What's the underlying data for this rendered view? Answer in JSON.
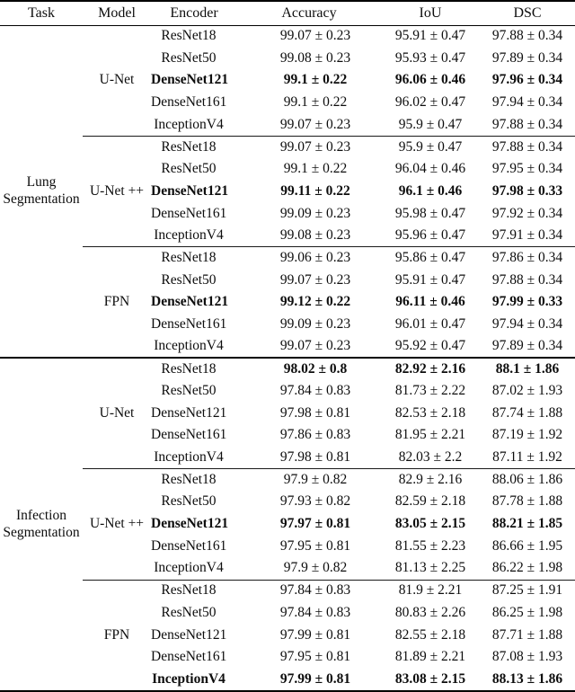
{
  "table": {
    "columns": [
      "Task",
      "Model",
      "Encoder",
      "Accuracy",
      "IoU",
      "DSC"
    ],
    "tasks": [
      {
        "name": "Lung Segmentation",
        "models": [
          {
            "name": "U-Net",
            "rows": [
              {
                "encoder": "ResNet18",
                "accuracy": "99.07 ± 0.23",
                "iou": "95.91 ± 0.47",
                "dsc": "97.88 ± 0.34",
                "bold_encoder": false,
                "bold_values": false
              },
              {
                "encoder": "ResNet50",
                "accuracy": "99.08 ± 0.23",
                "iou": "95.93 ± 0.47",
                "dsc": "97.89 ± 0.34",
                "bold_encoder": false,
                "bold_values": false
              },
              {
                "encoder": "DenseNet121",
                "accuracy": "99.1 ± 0.22",
                "iou": "96.06 ± 0.46",
                "dsc": "97.96 ± 0.34",
                "bold_encoder": true,
                "bold_values": true
              },
              {
                "encoder": "DenseNet161",
                "accuracy": "99.1 ± 0.22",
                "iou": "96.02 ± 0.47",
                "dsc": "97.94 ± 0.34",
                "bold_encoder": false,
                "bold_values": false
              },
              {
                "encoder": "InceptionV4",
                "accuracy": "99.07 ± 0.23",
                "iou": "95.9 ± 0.47",
                "dsc": "97.88 ± 0.34",
                "bold_encoder": false,
                "bold_values": false
              }
            ]
          },
          {
            "name": "U-Net ++",
            "rows": [
              {
                "encoder": "ResNet18",
                "accuracy": "99.07 ± 0.23",
                "iou": "95.9 ± 0.47",
                "dsc": "97.88 ± 0.34",
                "bold_encoder": false,
                "bold_values": false
              },
              {
                "encoder": "ResNet50",
                "accuracy": "99.1 ± 0.22",
                "iou": "96.04 ± 0.46",
                "dsc": "97.95 ± 0.34",
                "bold_encoder": false,
                "bold_values": false
              },
              {
                "encoder": "DenseNet121",
                "accuracy": "99.11 ± 0.22",
                "iou": "96.1 ± 0.46",
                "dsc": "97.98 ± 0.33",
                "bold_encoder": true,
                "bold_values": true
              },
              {
                "encoder": "DenseNet161",
                "accuracy": "99.09 ± 0.23",
                "iou": "95.98 ± 0.47",
                "dsc": "97.92 ± 0.34",
                "bold_encoder": false,
                "bold_values": false
              },
              {
                "encoder": "InceptionV4",
                "accuracy": "99.08 ± 0.23",
                "iou": "95.96 ± 0.47",
                "dsc": "97.91 ± 0.34",
                "bold_encoder": false,
                "bold_values": false
              }
            ]
          },
          {
            "name": "FPN",
            "rows": [
              {
                "encoder": "ResNet18",
                "accuracy": "99.06 ± 0.23",
                "iou": "95.86 ± 0.47",
                "dsc": "97.86 ± 0.34",
                "bold_encoder": false,
                "bold_values": false
              },
              {
                "encoder": "ResNet50",
                "accuracy": "99.07 ± 0.23",
                "iou": "95.91 ± 0.47",
                "dsc": "97.88 ± 0.34",
                "bold_encoder": false,
                "bold_values": false
              },
              {
                "encoder": "DenseNet121",
                "accuracy": "99.12 ± 0.22",
                "iou": "96.11 ± 0.46",
                "dsc": "97.99 ± 0.33",
                "bold_encoder": true,
                "bold_values": true
              },
              {
                "encoder": "DenseNet161",
                "accuracy": "99.09 ± 0.23",
                "iou": "96.01 ± 0.47",
                "dsc": "97.94 ± 0.34",
                "bold_encoder": false,
                "bold_values": false
              },
              {
                "encoder": "InceptionV4",
                "accuracy": "99.07 ± 0.23",
                "iou": "95.92 ± 0.47",
                "dsc": "97.89 ± 0.34",
                "bold_encoder": false,
                "bold_values": false
              }
            ]
          }
        ]
      },
      {
        "name": "Infection Segmentation",
        "models": [
          {
            "name": "U-Net",
            "rows": [
              {
                "encoder": "ResNet18",
                "accuracy": "98.02 ± 0.8",
                "iou": "82.92 ± 2.16",
                "dsc": "88.1 ± 1.86",
                "bold_encoder": false,
                "bold_values": true
              },
              {
                "encoder": "ResNet50",
                "accuracy": "97.84 ± 0.83",
                "iou": "81.73 ± 2.22",
                "dsc": "87.02 ± 1.93",
                "bold_encoder": false,
                "bold_values": false
              },
              {
                "encoder": "DenseNet121",
                "accuracy": "97.98 ± 0.81",
                "iou": "82.53 ± 2.18",
                "dsc": "87.74 ± 1.88",
                "bold_encoder": false,
                "bold_values": false
              },
              {
                "encoder": "DenseNet161",
                "accuracy": "97.86 ± 0.83",
                "iou": "81.95 ± 2.21",
                "dsc": "87.19 ± 1.92",
                "bold_encoder": false,
                "bold_values": false
              },
              {
                "encoder": "InceptionV4",
                "accuracy": "97.98 ± 0.81",
                "iou": "82.03 ± 2.2",
                "dsc": "87.11 ± 1.92",
                "bold_encoder": false,
                "bold_values": false
              }
            ]
          },
          {
            "name": "U-Net ++",
            "rows": [
              {
                "encoder": "ResNet18",
                "accuracy": "97.9 ± 0.82",
                "iou": "82.9 ± 2.16",
                "dsc": "88.06 ± 1.86",
                "bold_encoder": false,
                "bold_values": false
              },
              {
                "encoder": "ResNet50",
                "accuracy": "97.93 ± 0.82",
                "iou": "82.59 ± 2.18",
                "dsc": "87.78 ± 1.88",
                "bold_encoder": false,
                "bold_values": false
              },
              {
                "encoder": "DenseNet121",
                "accuracy": "97.97 ± 0.81",
                "iou": "83.05 ± 2.15",
                "dsc": "88.21 ± 1.85",
                "bold_encoder": true,
                "bold_values": true
              },
              {
                "encoder": "DenseNet161",
                "accuracy": "97.95 ± 0.81",
                "iou": "81.55 ± 2.23",
                "dsc": "86.66 ± 1.95",
                "bold_encoder": false,
                "bold_values": false
              },
              {
                "encoder": "InceptionV4",
                "accuracy": "97.9 ± 0.82",
                "iou": "81.13 ± 2.25",
                "dsc": "86.22 ± 1.98",
                "bold_encoder": false,
                "bold_values": false
              }
            ]
          },
          {
            "name": "FPN",
            "rows": [
              {
                "encoder": "ResNet18",
                "accuracy": "97.84 ± 0.83",
                "iou": "81.9 ± 2.21",
                "dsc": "87.25 ± 1.91",
                "bold_encoder": false,
                "bold_values": false
              },
              {
                "encoder": "ResNet50",
                "accuracy": "97.84 ± 0.83",
                "iou": "80.83 ± 2.26",
                "dsc": "86.25 ± 1.98",
                "bold_encoder": false,
                "bold_values": false
              },
              {
                "encoder": "DenseNet121",
                "accuracy": "97.99 ± 0.81",
                "iou": "82.55 ± 2.18",
                "dsc": "87.71 ± 1.88",
                "bold_encoder": false,
                "bold_values": false
              },
              {
                "encoder": "DenseNet161",
                "accuracy": "97.95 ± 0.81",
                "iou": "81.89 ± 2.21",
                "dsc": "87.08 ± 1.93",
                "bold_encoder": false,
                "bold_values": false
              },
              {
                "encoder": "InceptionV4",
                "accuracy": "97.99 ± 0.81",
                "iou": "83.08 ± 2.15",
                "dsc": "88.13 ± 1.86",
                "bold_encoder": true,
                "bold_values": true
              }
            ]
          }
        ]
      }
    ]
  }
}
